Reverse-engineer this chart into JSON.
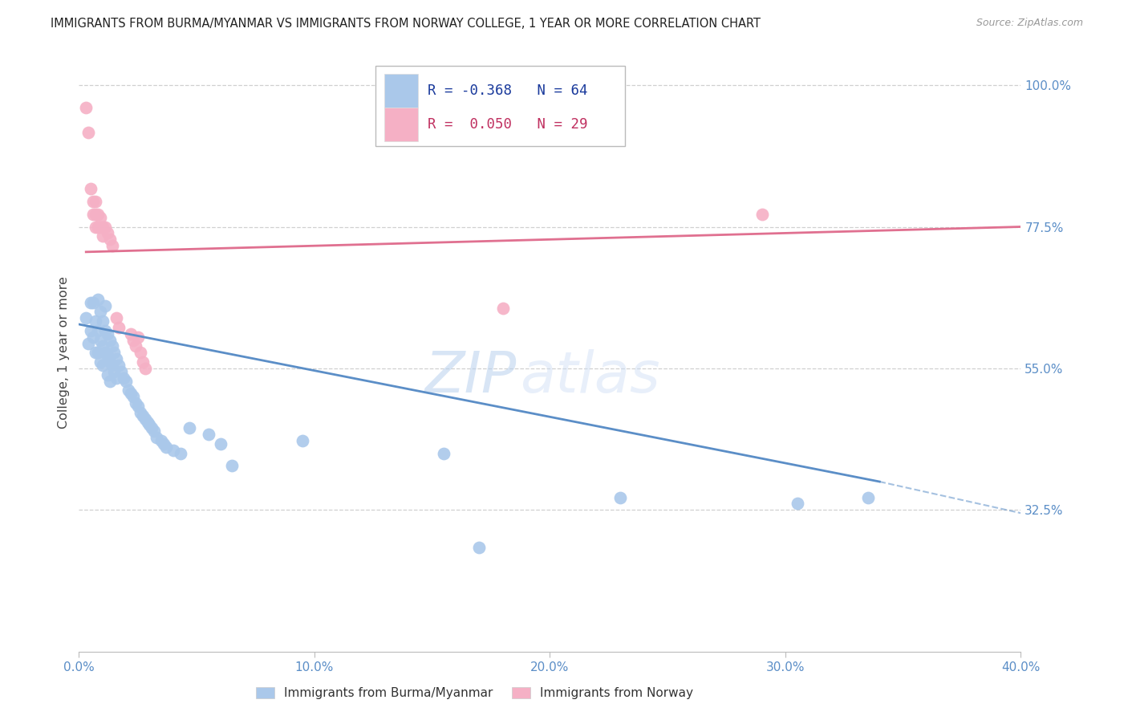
{
  "title": "IMMIGRANTS FROM BURMA/MYANMAR VS IMMIGRANTS FROM NORWAY COLLEGE, 1 YEAR OR MORE CORRELATION CHART",
  "source": "Source: ZipAtlas.com",
  "ylabel": "College, 1 year or more",
  "xlabel_ticks": [
    "0.0%",
    "10.0%",
    "20.0%",
    "30.0%",
    "40.0%"
  ],
  "ylabel_ticks": [
    "100.0%",
    "77.5%",
    "55.0%",
    "32.5%"
  ],
  "ytick_vals": [
    1.0,
    0.775,
    0.55,
    0.325
  ],
  "xlim": [
    0.0,
    0.4
  ],
  "ylim": [
    0.1,
    1.05
  ],
  "xticks": [
    0.0,
    0.1,
    0.2,
    0.3,
    0.4
  ],
  "blue_R": "-0.368",
  "blue_N": "64",
  "pink_R": "0.050",
  "pink_N": "29",
  "blue_line_x0": 0.0,
  "blue_line_y0": 0.62,
  "blue_line_x1": 0.34,
  "blue_line_y1": 0.37,
  "blue_line_ext_x1": 0.4,
  "blue_line_ext_y1": 0.32,
  "pink_line_x0": 0.003,
  "pink_line_y0": 0.735,
  "pink_line_x1": 0.4,
  "pink_line_y1": 0.775,
  "blue_scatter": [
    [
      0.003,
      0.63
    ],
    [
      0.004,
      0.59
    ],
    [
      0.005,
      0.655
    ],
    [
      0.005,
      0.61
    ],
    [
      0.006,
      0.655
    ],
    [
      0.006,
      0.6
    ],
    [
      0.007,
      0.625
    ],
    [
      0.007,
      0.575
    ],
    [
      0.008,
      0.66
    ],
    [
      0.008,
      0.61
    ],
    [
      0.008,
      0.575
    ],
    [
      0.009,
      0.64
    ],
    [
      0.009,
      0.595
    ],
    [
      0.009,
      0.56
    ],
    [
      0.01,
      0.625
    ],
    [
      0.01,
      0.585
    ],
    [
      0.01,
      0.555
    ],
    [
      0.011,
      0.65
    ],
    [
      0.011,
      0.61
    ],
    [
      0.011,
      0.575
    ],
    [
      0.012,
      0.605
    ],
    [
      0.012,
      0.57
    ],
    [
      0.012,
      0.54
    ],
    [
      0.013,
      0.595
    ],
    [
      0.013,
      0.56
    ],
    [
      0.013,
      0.53
    ],
    [
      0.014,
      0.585
    ],
    [
      0.014,
      0.555
    ],
    [
      0.015,
      0.575
    ],
    [
      0.015,
      0.545
    ],
    [
      0.016,
      0.565
    ],
    [
      0.016,
      0.535
    ],
    [
      0.017,
      0.555
    ],
    [
      0.018,
      0.545
    ],
    [
      0.019,
      0.535
    ],
    [
      0.02,
      0.53
    ],
    [
      0.021,
      0.515
    ],
    [
      0.022,
      0.51
    ],
    [
      0.023,
      0.505
    ],
    [
      0.024,
      0.495
    ],
    [
      0.025,
      0.49
    ],
    [
      0.026,
      0.48
    ],
    [
      0.027,
      0.475
    ],
    [
      0.028,
      0.47
    ],
    [
      0.029,
      0.465
    ],
    [
      0.03,
      0.46
    ],
    [
      0.031,
      0.455
    ],
    [
      0.032,
      0.45
    ],
    [
      0.033,
      0.44
    ],
    [
      0.035,
      0.435
    ],
    [
      0.036,
      0.43
    ],
    [
      0.037,
      0.425
    ],
    [
      0.04,
      0.42
    ],
    [
      0.043,
      0.415
    ],
    [
      0.047,
      0.455
    ],
    [
      0.055,
      0.445
    ],
    [
      0.06,
      0.43
    ],
    [
      0.065,
      0.395
    ],
    [
      0.095,
      0.435
    ],
    [
      0.155,
      0.415
    ],
    [
      0.17,
      0.265
    ],
    [
      0.23,
      0.345
    ],
    [
      0.305,
      0.335
    ],
    [
      0.335,
      0.345
    ]
  ],
  "pink_scatter": [
    [
      0.003,
      0.965
    ],
    [
      0.004,
      0.925
    ],
    [
      0.005,
      0.835
    ],
    [
      0.006,
      0.815
    ],
    [
      0.006,
      0.795
    ],
    [
      0.007,
      0.815
    ],
    [
      0.007,
      0.795
    ],
    [
      0.007,
      0.775
    ],
    [
      0.008,
      0.795
    ],
    [
      0.008,
      0.775
    ],
    [
      0.009,
      0.79
    ],
    [
      0.009,
      0.775
    ],
    [
      0.01,
      0.775
    ],
    [
      0.01,
      0.76
    ],
    [
      0.011,
      0.775
    ],
    [
      0.012,
      0.765
    ],
    [
      0.013,
      0.755
    ],
    [
      0.014,
      0.745
    ],
    [
      0.016,
      0.63
    ],
    [
      0.017,
      0.615
    ],
    [
      0.022,
      0.605
    ],
    [
      0.023,
      0.595
    ],
    [
      0.024,
      0.585
    ],
    [
      0.025,
      0.6
    ],
    [
      0.026,
      0.575
    ],
    [
      0.027,
      0.56
    ],
    [
      0.028,
      0.55
    ],
    [
      0.18,
      0.645
    ],
    [
      0.29,
      0.795
    ]
  ],
  "blue_line_color": "#5b8ec7",
  "pink_line_color": "#e07090",
  "blue_scatter_color": "#aac8ea",
  "pink_scatter_color": "#f5b0c5",
  "watermark_zip": "ZIP",
  "watermark_atlas": "atlas",
  "grid_color": "#d0d0d0",
  "legend_blue_text_color": "#1a3a9c",
  "legend_pink_text_color": "#c03060"
}
